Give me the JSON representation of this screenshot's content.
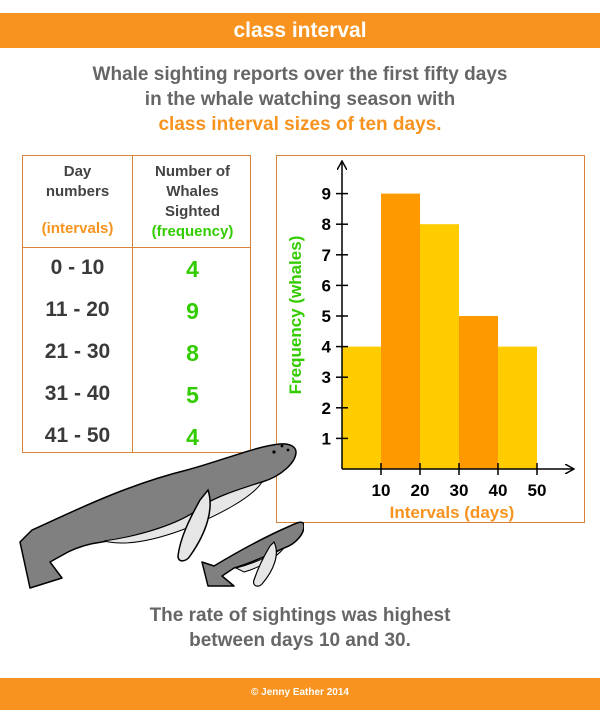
{
  "header": {
    "title": "class interval"
  },
  "intro": {
    "line1": "Whale sighting reports over the first fifty days",
    "line2": "in the whale watching season with",
    "line3": "class interval sizes of ten days."
  },
  "table": {
    "col1_header_line1": "Day",
    "col1_header_line2": "numbers",
    "col1_header_sub": "(intervals)",
    "col2_header_line1": "Number of",
    "col2_header_line2": "Whales",
    "col2_header_line3": "Sighted",
    "col2_header_sub": "(frequency)",
    "rows": [
      {
        "interval": "0 - 10",
        "frequency": "4"
      },
      {
        "interval": "11 - 20",
        "frequency": "9"
      },
      {
        "interval": "21 - 30",
        "frequency": "8"
      },
      {
        "interval": "31 - 40",
        "frequency": "5"
      },
      {
        "interval": "41 - 50",
        "frequency": "4"
      }
    ]
  },
  "chart_data": {
    "type": "bar",
    "title": "",
    "xlabel": "Intervals (days)",
    "ylabel": "Frequency (whales)",
    "x_ticks": [
      10,
      20,
      30,
      40,
      50
    ],
    "y_ticks": [
      1,
      2,
      3,
      4,
      5,
      6,
      7,
      8,
      9
    ],
    "bins": [
      [
        0,
        10
      ],
      [
        10,
        20
      ],
      [
        20,
        30
      ],
      [
        30,
        40
      ],
      [
        40,
        50
      ]
    ],
    "values": [
      4,
      9,
      8,
      5,
      4
    ],
    "xlim": [
      0,
      50
    ],
    "ylim": [
      0,
      9
    ],
    "grid": false,
    "bar_colors": [
      "#ffcc00",
      "#ff9900",
      "#ffcc00",
      "#ff9900",
      "#ffcc00"
    ],
    "axis_label_colors": {
      "x": "#f7931e",
      "y": "#33cc00"
    }
  },
  "illustration": {
    "icon": "humpback-whales-icon"
  },
  "conclusion": {
    "line1": "The rate of sightings was highest",
    "line2": "between days 10 and 30."
  },
  "footer": {
    "credit": "© Jenny Eather 2014"
  }
}
